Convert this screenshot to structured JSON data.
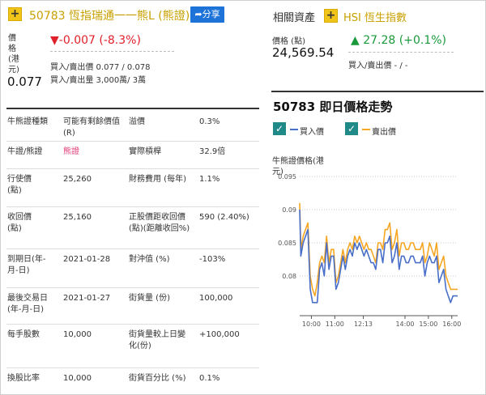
{
  "warrant": {
    "plus_symbol": "+",
    "title": "50783 恆指瑞通一一熊L (熊證)",
    "share_label": "分享",
    "price_label": "價格(港元)",
    "price": "0.077",
    "change": "-0.007 (-8.3%)",
    "change_arrow": "▼",
    "bid_ask_price": "買入/賣出價 0.077 / 0.078",
    "bid_ask_volume": "買入/賣出量 3,000萬/ 3萬"
  },
  "details": [
    {
      "label": "牛熊證種類",
      "value": "可能有剩餘價值(R)",
      "label2": "溢價",
      "value2": "0.3%"
    },
    {
      "label": "牛證/熊證",
      "value": "熊證",
      "label2": "實際槓桿",
      "value2": "32.9倍"
    },
    {
      "label": "行使價(點)",
      "value": "25,260",
      "label2": "財務費用 (每年)",
      "value2": "1.1%"
    },
    {
      "label": "收回價(點)",
      "value": "25,160",
      "label2": "正股價距收回價(點)(距離收回%)",
      "value2": "590 (2.40%)"
    },
    {
      "label": "到期日(年-月-日)",
      "value": "2021-01-28",
      "label2": "對沖值 (%)",
      "value2": "-103%"
    },
    {
      "label": "最後交易日(年-月-日)",
      "value": "2021-01-27",
      "label2": "街貨量 (份)",
      "value2": "100,000"
    },
    {
      "label": "每手股數",
      "value": "10,000",
      "label2": "街貨量較上日變化(份)",
      "value2": "+100,000"
    },
    {
      "label": "換股比率",
      "value": "10,000",
      "label2": "街貨百分比 (%)",
      "value2": "0.1%"
    }
  ],
  "related": {
    "title": "相關資產",
    "plus_symbol": "+",
    "name": "HSI 恆生指數",
    "price_label": "價格 (點)",
    "price": "24,569.54",
    "change_arrow": "▲",
    "change": "27.28 (+0.1%)",
    "bid_ask": "買入/賣出價 - / -"
  },
  "chart_header": {
    "title": "50783 即日價格走勢",
    "check_symbol": "✓",
    "legend_bid": "買入價",
    "legend_ask": "賣出價"
  },
  "colors": {
    "bid_line": "#4a6fc8",
    "ask_line": "#f5a623",
    "accent_yellow": "#f0c419",
    "down_red": "#e0202a",
    "up_green": "#1a9a3a"
  },
  "chart_data": {
    "type": "line",
    "title": "50783 即日價格走勢",
    "ylabel": "牛熊證價格(港元)",
    "xlabel": "",
    "ylim": [
      0.075,
      0.095
    ],
    "yticks": [
      0.08,
      0.085,
      0.09,
      0.095
    ],
    "yticklabels": [
      "0.08",
      "0.085",
      "0.09",
      "0.095"
    ],
    "xticks": [
      10.0,
      11.0,
      12.2167,
      14.0,
      15.0,
      16.0
    ],
    "xticklabels": [
      "10:00",
      "11:00",
      "12:13",
      "14:00",
      "15:00",
      "16:00"
    ],
    "xlim": [
      9.5,
      16.25
    ],
    "grid": "horizontal-dotted",
    "series": [
      {
        "name": "買入價",
        "color": "#4a6fc8",
        "x": [
          9.5,
          9.55,
          9.65,
          9.75,
          9.85,
          9.95,
          10.05,
          10.15,
          10.25,
          10.35,
          10.45,
          10.55,
          10.65,
          10.75,
          10.85,
          10.95,
          11.05,
          11.15,
          11.25,
          11.35,
          11.45,
          11.55,
          11.65,
          11.75,
          11.85,
          11.95,
          12.05,
          12.15,
          12.25,
          12.35,
          12.45,
          12.55,
          12.65,
          12.75,
          12.85,
          12.95,
          13.05,
          13.15,
          13.25,
          13.35,
          13.45,
          13.55,
          13.65,
          13.75,
          13.85,
          13.95,
          14.05,
          14.15,
          14.25,
          14.35,
          14.45,
          14.55,
          14.65,
          14.75,
          14.85,
          14.95,
          15.05,
          15.15,
          15.25,
          15.35,
          15.45,
          15.55,
          15.65,
          15.75,
          15.85,
          15.95,
          16.05,
          16.15,
          16.25
        ],
        "y": [
          0.09,
          0.083,
          0.085,
          0.086,
          0.087,
          0.078,
          0.076,
          0.076,
          0.076,
          0.081,
          0.082,
          0.08,
          0.085,
          0.081,
          0.083,
          0.083,
          0.078,
          0.079,
          0.081,
          0.083,
          0.081,
          0.083,
          0.084,
          0.083,
          0.085,
          0.084,
          0.085,
          0.084,
          0.083,
          0.084,
          0.083,
          0.082,
          0.082,
          0.081,
          0.084,
          0.084,
          0.082,
          0.085,
          0.085,
          0.086,
          0.082,
          0.083,
          0.085,
          0.081,
          0.083,
          0.083,
          0.082,
          0.082,
          0.083,
          0.083,
          0.082,
          0.082,
          0.082,
          0.083,
          0.08,
          0.082,
          0.083,
          0.082,
          0.082,
          0.083,
          0.079,
          0.08,
          0.081,
          0.078,
          0.077,
          0.076,
          0.077,
          0.077,
          0.077
        ]
      },
      {
        "name": "賣出價",
        "color": "#f5a623",
        "x": [
          9.5,
          9.55,
          9.65,
          9.75,
          9.85,
          9.95,
          10.05,
          10.15,
          10.25,
          10.35,
          10.45,
          10.55,
          10.65,
          10.75,
          10.85,
          10.95,
          11.05,
          11.15,
          11.25,
          11.35,
          11.45,
          11.55,
          11.65,
          11.75,
          11.85,
          11.95,
          12.05,
          12.15,
          12.25,
          12.35,
          12.45,
          12.55,
          12.65,
          12.75,
          12.85,
          12.95,
          13.05,
          13.15,
          13.25,
          13.35,
          13.45,
          13.55,
          13.65,
          13.75,
          13.85,
          13.95,
          14.05,
          14.15,
          14.25,
          14.35,
          14.45,
          14.55,
          14.65,
          14.75,
          14.85,
          14.95,
          15.05,
          15.15,
          15.25,
          15.35,
          15.45,
          15.55,
          15.65,
          15.75,
          15.85,
          15.95,
          16.05,
          16.15,
          16.25
        ],
        "y": [
          0.091,
          0.084,
          0.086,
          0.087,
          0.088,
          0.08,
          0.078,
          0.077,
          0.079,
          0.082,
          0.083,
          0.082,
          0.086,
          0.082,
          0.084,
          0.084,
          0.079,
          0.08,
          0.082,
          0.084,
          0.082,
          0.084,
          0.085,
          0.084,
          0.086,
          0.085,
          0.086,
          0.085,
          0.084,
          0.085,
          0.084,
          0.084,
          0.083,
          0.082,
          0.085,
          0.085,
          0.084,
          0.087,
          0.087,
          0.088,
          0.084,
          0.085,
          0.087,
          0.083,
          0.085,
          0.085,
          0.084,
          0.084,
          0.085,
          0.085,
          0.084,
          0.084,
          0.084,
          0.085,
          0.082,
          0.083,
          0.085,
          0.084,
          0.083,
          0.085,
          0.081,
          0.082,
          0.083,
          0.08,
          0.079,
          0.078,
          0.078,
          0.078,
          0.078
        ]
      }
    ]
  }
}
